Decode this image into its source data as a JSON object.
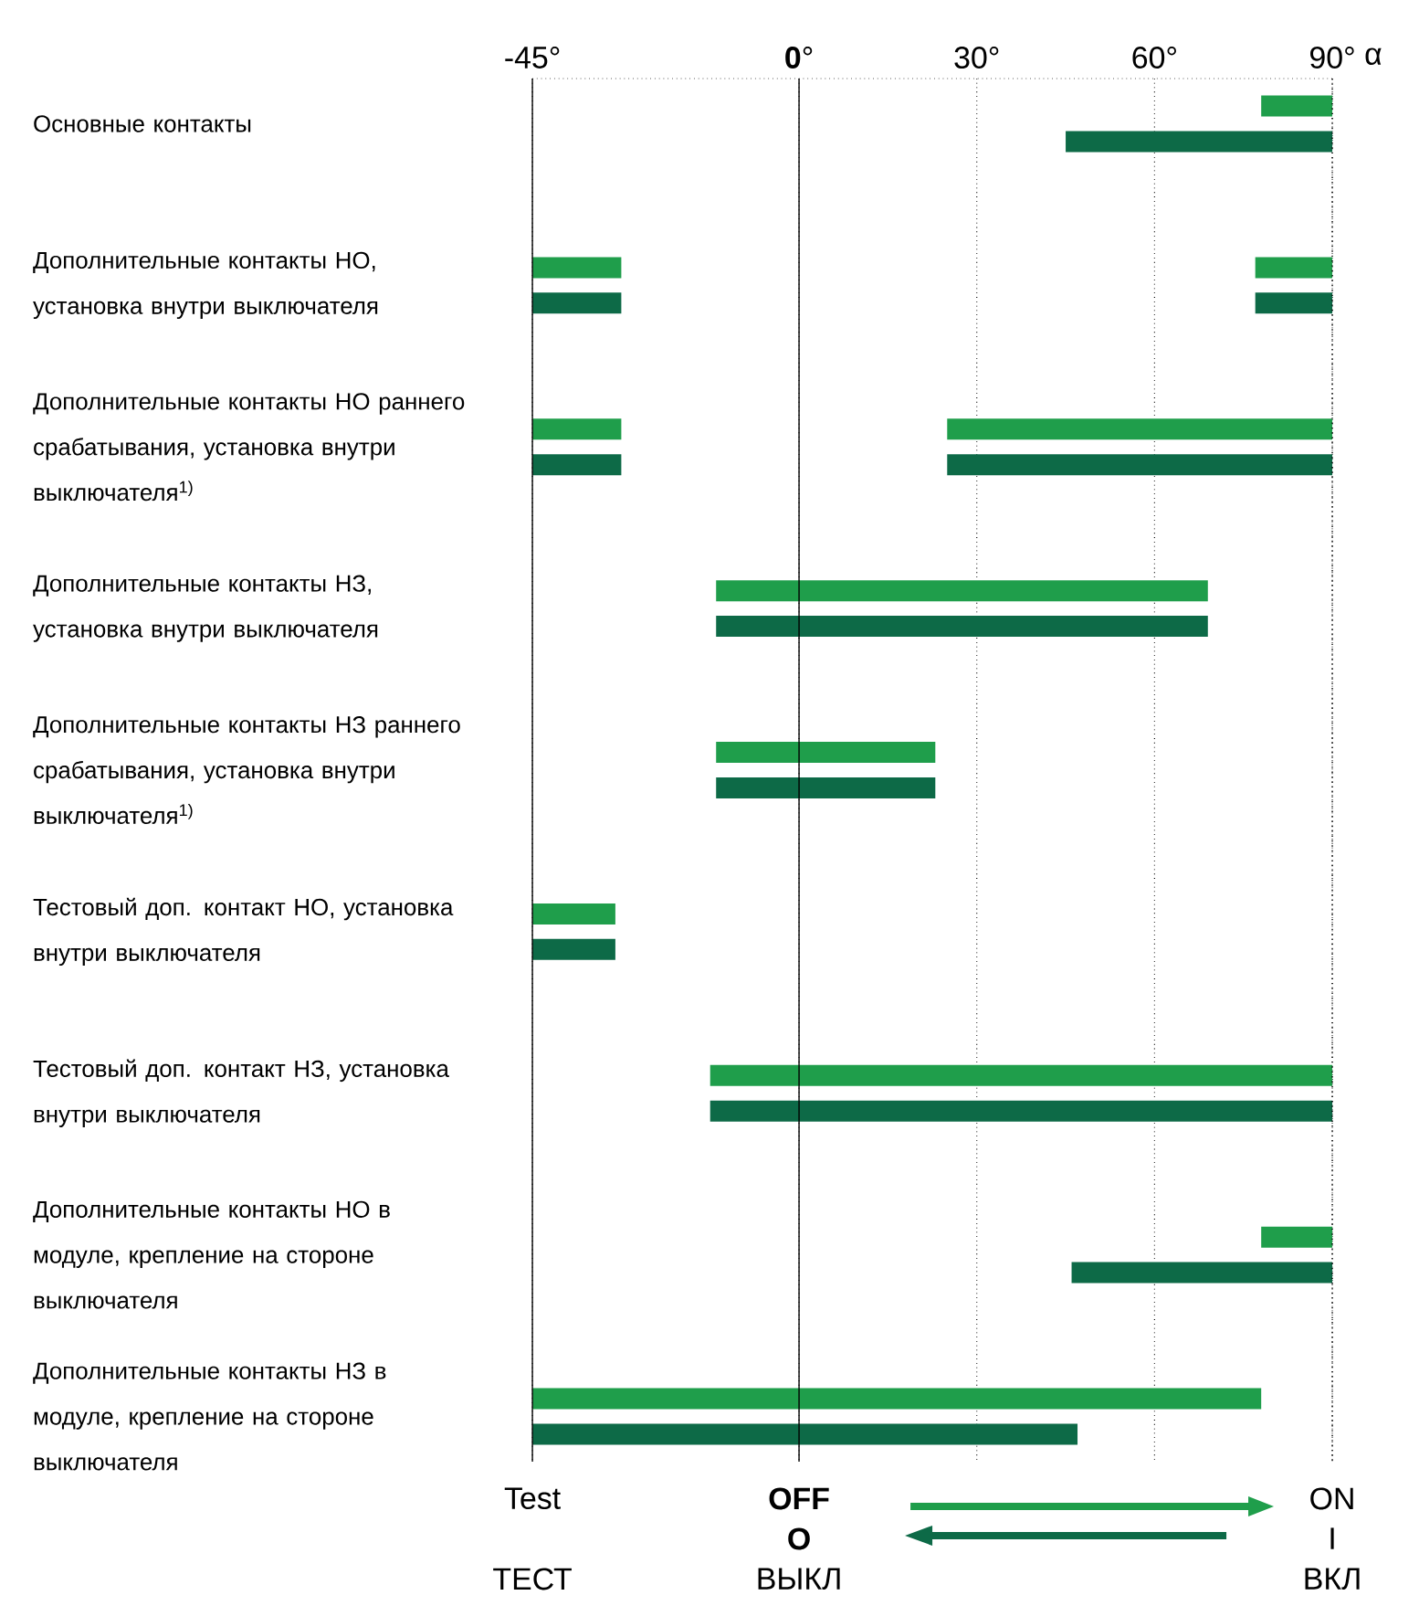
{
  "chart_data": {
    "type": "bar",
    "orientation": "horizontal",
    "xlabel": "α",
    "categories": [
      "Основные контакты",
      "Дополнительные контакты НО, установка внутри выключателя",
      "Дополнительные контакты НО раннего срабатывания, установка внутри выключателя$^{1)}$",
      "Дополнительные контакты НЗ, установка внутри выключателя",
      "Дополнительные контакты НЗ раннего срабатывания, установка внутри выключателя$^{1)}$",
      "Тестовый доп. контакт НО, установка внутри выключателя",
      "Тестовый доп. контакт НЗ, установка внутри выключателя",
      "Дополнительные контакты НО в модуле, крепление на стороне выключателя",
      "Дополнительные контакты НЗ в модуле, крепление на стороне выключателя"
    ],
    "series": [
      {
        "color": "#1f9e4b",
        "base": [
          78,
          -45,
          -45,
          -14,
          -14,
          -45,
          -15,
          78,
          -45
        ],
        "values": [
          12,
          15,
          15,
          83,
          37,
          14,
          105,
          12,
          123
        ]
      },
      {
        "color": "#1f9e4b",
        "base": [
          null,
          77,
          25,
          null,
          null,
          null,
          null,
          null,
          null
        ],
        "values": [
          null,
          13,
          65,
          null,
          null,
          null,
          null,
          null,
          null
        ]
      },
      {
        "color": "#0d6a47",
        "base": [
          45,
          -45,
          -45,
          -14,
          -14,
          -45,
          -15,
          46,
          -45
        ],
        "values": [
          45,
          15,
          15,
          83,
          37,
          14,
          105,
          44,
          92
        ]
      },
      {
        "color": "#0d6a47",
        "base": [
          null,
          77,
          25,
          null,
          null,
          null,
          null,
          null,
          null
        ],
        "values": [
          null,
          13,
          65,
          null,
          null,
          null,
          null,
          null,
          null
        ]
      }
    ],
    "xlim": [
      -45,
      90
    ],
    "xticks": [
      {
        "value": -45,
        "label": "-45°"
      },
      {
        "value": 0,
        "label": "**0**°"
      },
      {
        "value": 30,
        "label": "30°"
      },
      {
        "value": 60,
        "label": "60°"
      },
      {
        "value": 90,
        "label": "90°"
      }
    ],
    "grid": "x",
    "ref_lines": [
      {
        "axis": "x",
        "value": -45,
        "line_style": "solid",
        "label": "Test"
      },
      {
        "axis": "x",
        "value": 0,
        "line_style": "solid",
        "label": "**OFF**"
      },
      {
        "axis": "x",
        "value": 90,
        "line_style": "dotted",
        "label": "ON"
      }
    ],
    "annotations": [
      "**O**",
      "I",
      "ТЕСТ",
      "ВЫКЛ",
      "ВКЛ"
    ]
  }
}
